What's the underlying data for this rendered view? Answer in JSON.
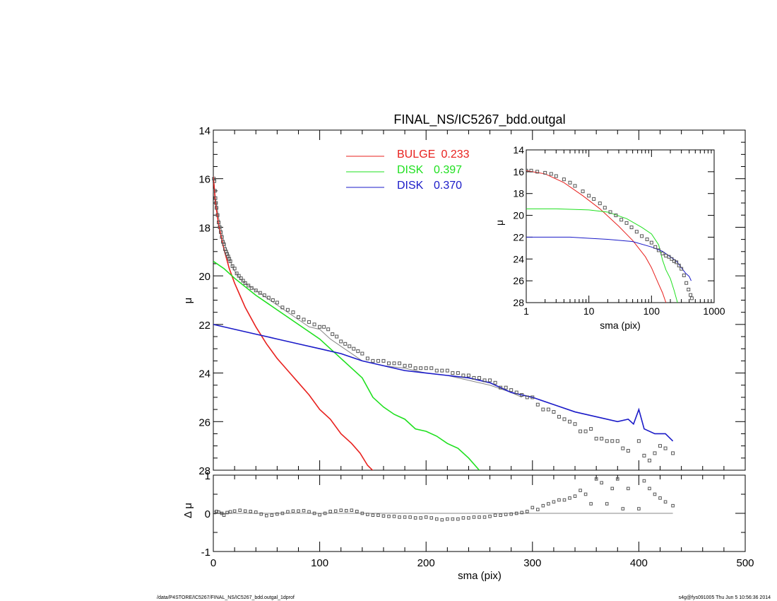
{
  "title": "FINAL_NS/IC5267_bdd.outgal",
  "footer": {
    "path": "/data/P4STORE/IC5267/FINAL_NS/IC5267_bdd.outgal_1dprof",
    "stamp": "s4g@fys091005  Thu Jun  5 10:56:36 2014"
  },
  "colors": {
    "bulge": "#e8211e",
    "disk1": "#1fe01f",
    "disk2": "#1a1ac8",
    "data": "#555555",
    "model": "#888888"
  },
  "chart_data": [
    {
      "id": "main",
      "type": "scatter",
      "title": "FINAL_NS/IC5267_bdd.outgal",
      "xlabel": "sma (pix)",
      "ylabel": "μ",
      "xlim": [
        0,
        500
      ],
      "ylim": [
        28,
        14
      ],
      "x_ticks": [
        "0",
        "100",
        "200",
        "300",
        "400",
        "500"
      ],
      "y_ticks": [
        "14",
        "16",
        "18",
        "20",
        "22",
        "24",
        "26",
        "28"
      ],
      "legend_position": "top-center",
      "legend": [
        {
          "label": "BULGE",
          "value": "0.233",
          "color": "#e8211e"
        },
        {
          "label": "DISK",
          "value": "0.397",
          "color": "#1fe01f"
        },
        {
          "label": "DISK",
          "value": "0.370",
          "color": "#1a1ac8"
        }
      ],
      "series": [
        {
          "role": "bulge",
          "color": "#e8211e",
          "x": [
            0,
            2,
            5,
            10,
            15,
            20,
            25,
            30,
            40,
            50,
            60,
            70,
            80,
            90,
            100,
            110,
            120,
            130,
            138,
            145,
            152
          ],
          "y": [
            15.9,
            17.0,
            17.9,
            18.9,
            19.7,
            20.3,
            20.8,
            21.3,
            22.1,
            22.8,
            23.4,
            23.9,
            24.4,
            24.9,
            25.5,
            25.9,
            26.5,
            26.9,
            27.3,
            27.8,
            28.1
          ]
        },
        {
          "role": "disk1",
          "color": "#1fe01f",
          "x": [
            0,
            10,
            20,
            40,
            60,
            80,
            100,
            120,
            130,
            140,
            150,
            160,
            170,
            180,
            190,
            200,
            210,
            220,
            230,
            240,
            250
          ],
          "y": [
            19.4,
            19.7,
            20.1,
            20.8,
            21.4,
            22.0,
            22.6,
            23.4,
            23.8,
            24.2,
            25.0,
            25.4,
            25.7,
            25.9,
            26.3,
            26.4,
            26.6,
            26.9,
            27.1,
            27.5,
            28.0
          ]
        },
        {
          "role": "disk2",
          "color": "#1a1ac8",
          "x": [
            0,
            20,
            40,
            60,
            80,
            100,
            120,
            140,
            160,
            180,
            200,
            220,
            240,
            260,
            280,
            300,
            320,
            340,
            360,
            380,
            390,
            395,
            400,
            405,
            415,
            425,
            432
          ],
          "y": [
            22.0,
            22.2,
            22.4,
            22.6,
            22.8,
            23.0,
            23.2,
            23.5,
            23.7,
            23.9,
            24.0,
            24.1,
            24.2,
            24.4,
            24.8,
            25.0,
            25.3,
            25.6,
            25.8,
            26.0,
            25.9,
            26.1,
            25.5,
            26.3,
            26.5,
            26.5,
            26.8
          ]
        }
      ],
      "model": {
        "color": "#888888",
        "x": [
          0,
          2,
          5,
          10,
          15,
          20,
          25,
          30,
          40,
          50,
          60,
          70,
          80,
          90,
          100,
          110,
          120,
          130,
          140,
          160,
          180,
          200,
          220,
          240,
          260,
          280,
          290
        ],
        "y": [
          15.9,
          16.8,
          17.6,
          18.6,
          19.3,
          19.8,
          20.1,
          20.3,
          20.6,
          20.9,
          21.2,
          21.5,
          21.8,
          22.1,
          22.2,
          22.6,
          22.9,
          23.2,
          23.5,
          23.7,
          23.8,
          24.0,
          24.1,
          24.3,
          24.5,
          24.8,
          25.0
        ]
      },
      "data_points": {
        "color": "#555555",
        "x": [
          0.5,
          1,
          1.5,
          2,
          2.5,
          3,
          4,
          5,
          6,
          7,
          8,
          9,
          10,
          11,
          12,
          13,
          14,
          15,
          16,
          18,
          20,
          22,
          24,
          26,
          28,
          30,
          33,
          36,
          40,
          44,
          48,
          52,
          56,
          60,
          65,
          70,
          75,
          80,
          85,
          90,
          95,
          100,
          104,
          108,
          112,
          116,
          120,
          124,
          128,
          132,
          136,
          140,
          145,
          150,
          155,
          160,
          165,
          170,
          175,
          180,
          185,
          190,
          195,
          200,
          205,
          210,
          215,
          220,
          225,
          230,
          235,
          240,
          245,
          250,
          255,
          260,
          265,
          270,
          275,
          280,
          285,
          290,
          295,
          300,
          305,
          310,
          315,
          320,
          325,
          330,
          335,
          340,
          345,
          350,
          355,
          360,
          365,
          370,
          375,
          380,
          385,
          390,
          400,
          405,
          410,
          415,
          420,
          425,
          432
        ],
        "y": [
          16.0,
          16.1,
          16.5,
          16.8,
          17.0,
          17.2,
          17.5,
          17.8,
          18.0,
          18.2,
          18.4,
          18.6,
          18.7,
          18.9,
          19.0,
          19.1,
          19.2,
          19.3,
          19.4,
          19.6,
          19.7,
          19.9,
          20.0,
          20.1,
          20.2,
          20.3,
          20.4,
          20.5,
          20.6,
          20.7,
          20.8,
          20.9,
          21.0,
          21.1,
          21.3,
          21.4,
          21.5,
          21.7,
          21.8,
          21.9,
          22.0,
          22.1,
          22.1,
          22.2,
          22.4,
          22.5,
          22.7,
          22.8,
          22.9,
          23.0,
          23.1,
          23.2,
          23.4,
          23.5,
          23.5,
          23.5,
          23.6,
          23.6,
          23.6,
          23.7,
          23.7,
          23.8,
          23.8,
          23.8,
          23.8,
          23.9,
          23.9,
          23.9,
          24.0,
          24.0,
          24.1,
          24.1,
          24.2,
          24.2,
          24.3,
          24.3,
          24.4,
          24.6,
          24.6,
          24.7,
          24.8,
          24.9,
          25.0,
          25.0,
          25.3,
          25.5,
          25.5,
          25.6,
          25.8,
          25.9,
          26.0,
          26.1,
          26.4,
          26.4,
          26.3,
          26.7,
          26.7,
          26.8,
          26.8,
          26.8,
          27.1,
          27.2,
          26.8,
          27.4,
          27.6,
          27.3,
          27.0,
          27.1,
          27.3
        ]
      }
    },
    {
      "id": "residual",
      "type": "scatter",
      "xlabel": "sma (pix)",
      "ylabel": "Δ μ",
      "xlim": [
        0,
        500
      ],
      "ylim": [
        -1,
        1
      ],
      "y_ticks": [
        "1",
        "0",
        "-1"
      ],
      "x": [
        1,
        3,
        5,
        8,
        10,
        13,
        16,
        20,
        25,
        30,
        35,
        40,
        45,
        50,
        55,
        60,
        65,
        70,
        75,
        80,
        85,
        90,
        95,
        100,
        105,
        110,
        115,
        120,
        125,
        130,
        135,
        140,
        145,
        150,
        155,
        160,
        165,
        170,
        175,
        180,
        185,
        190,
        195,
        200,
        205,
        210,
        215,
        220,
        225,
        230,
        235,
        240,
        245,
        250,
        255,
        260,
        265,
        270,
        275,
        280,
        285,
        290,
        295,
        300,
        305,
        310,
        315,
        320,
        325,
        330,
        335,
        340,
        345,
        350,
        355,
        360,
        365,
        370,
        375,
        380,
        385,
        390,
        400,
        405,
        410,
        415,
        420,
        425,
        432
      ],
      "y": [
        0.02,
        0.05,
        0.03,
        0.0,
        -0.05,
        0.02,
        0.04,
        0.06,
        0.08,
        0.06,
        0.05,
        0.03,
        -0.02,
        -0.06,
        -0.05,
        -0.02,
        0.0,
        0.04,
        0.06,
        0.06,
        0.07,
        0.04,
        0.0,
        -0.04,
        0.0,
        0.05,
        0.06,
        0.08,
        0.07,
        0.08,
        0.05,
        0.0,
        -0.03,
        -0.05,
        -0.05,
        -0.07,
        -0.08,
        -0.08,
        -0.1,
        -0.1,
        -0.1,
        -0.12,
        -0.12,
        -0.1,
        -0.12,
        -0.15,
        -0.17,
        -0.15,
        -0.15,
        -0.15,
        -0.12,
        -0.12,
        -0.1,
        -0.1,
        -0.1,
        -0.08,
        -0.05,
        -0.05,
        -0.03,
        -0.02,
        0.0,
        0.02,
        0.05,
        0.15,
        0.1,
        0.2,
        0.25,
        0.3,
        0.35,
        0.35,
        0.4,
        0.45,
        0.6,
        0.5,
        0.25,
        0.9,
        0.8,
        0.25,
        0.65,
        0.9,
        0.12,
        0.65,
        0.12,
        0.85,
        0.65,
        0.5,
        0.4,
        0.3,
        0.2
      ]
    },
    {
      "id": "inset",
      "type": "line",
      "xlabel": "sma (pix)",
      "ylabel": "μ",
      "xscale": "log",
      "xlim": [
        1,
        1000
      ],
      "ylim": [
        28,
        14
      ],
      "x_ticks": [
        "1",
        "10",
        "100",
        "1000"
      ],
      "y_ticks": [
        "14",
        "16",
        "18",
        "20",
        "22",
        "24",
        "26",
        "28"
      ],
      "series": [
        {
          "role": "bulge",
          "color": "#e8211e",
          "x": [
            1,
            2,
            4,
            8,
            15,
            30,
            50,
            80,
            100,
            130,
            150,
            170
          ],
          "y": [
            15.9,
            16.2,
            17.0,
            18.2,
            19.4,
            21.0,
            22.3,
            23.8,
            24.8,
            26.3,
            27.1,
            28.0
          ]
        },
        {
          "role": "disk1",
          "color": "#1fe01f",
          "x": [
            1,
            3,
            10,
            20,
            40,
            70,
            100,
            130,
            150,
            170,
            200,
            230,
            260
          ],
          "y": [
            19.4,
            19.4,
            19.5,
            19.7,
            20.3,
            21.1,
            21.7,
            22.7,
            24.1,
            25.0,
            25.8,
            26.9,
            28.0
          ]
        },
        {
          "role": "disk2",
          "color": "#1a1ac8",
          "x": [
            1,
            5,
            10,
            20,
            50,
            100,
            150,
            200,
            250,
            300,
            350,
            400,
            430
          ],
          "y": [
            22.0,
            22.0,
            22.1,
            22.2,
            22.4,
            22.9,
            23.3,
            23.8,
            24.2,
            24.8,
            25.3,
            25.6,
            26.0
          ]
        }
      ],
      "data_points": {
        "x": [
          1,
          1.2,
          1.5,
          2,
          2.5,
          3,
          4,
          5,
          6,
          8,
          10,
          12,
          15,
          18,
          22,
          27,
          33,
          40,
          48,
          58,
          70,
          85,
          100,
          115,
          130,
          150,
          170,
          190,
          210,
          230,
          250,
          275,
          300,
          330,
          360,
          390,
          420,
          440
        ],
        "y": [
          15.9,
          15.9,
          16.0,
          16.1,
          16.2,
          16.4,
          16.7,
          17.0,
          17.3,
          17.8,
          18.2,
          18.5,
          18.9,
          19.3,
          19.7,
          20.0,
          20.4,
          20.7,
          21.1,
          21.5,
          21.9,
          22.2,
          22.5,
          22.9,
          23.2,
          23.5,
          23.7,
          23.8,
          24.0,
          24.2,
          24.3,
          24.6,
          24.9,
          25.5,
          26.2,
          26.8,
          27.3,
          27.6
        ]
      }
    }
  ]
}
